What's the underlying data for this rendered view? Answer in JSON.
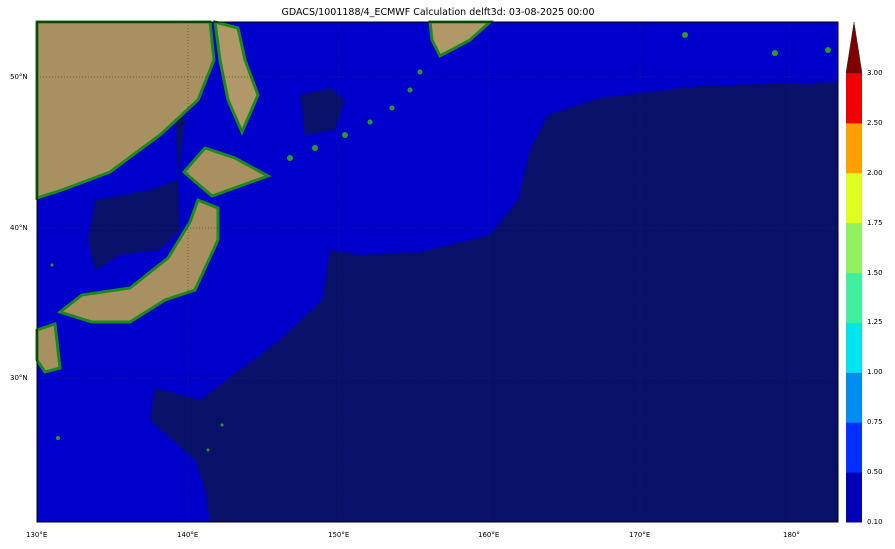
{
  "title": "GDACS/1001188/4_ECMWF Calculation delft3d: 03-08-2025 00:00",
  "x_ticks": [
    "130°E",
    "140°E",
    "150°E",
    "160°E",
    "170°E",
    "180°"
  ],
  "y_ticks": [
    "50°N",
    "40°N",
    "30°N"
  ],
  "colorbar": {
    "ticks": [
      "3.00",
      "2.50",
      "2.00",
      "1.75",
      "1.50",
      "1.25",
      "1.00",
      "0.75",
      "0.50",
      "0.10"
    ],
    "colors": [
      "#0000b4",
      "#0030ff",
      "#008cf0",
      "#00e4ee",
      "#40f0a0",
      "#90f060",
      "#e0ff20",
      "#ffa000",
      "#f00000"
    ],
    "extend_color": "#800000",
    "extend": "max"
  },
  "colors": {
    "shallow_ocean": "#0000cc",
    "deep_ocean": "#08106a",
    "land": "#b8a070",
    "coast": "#1a8a1a"
  }
}
